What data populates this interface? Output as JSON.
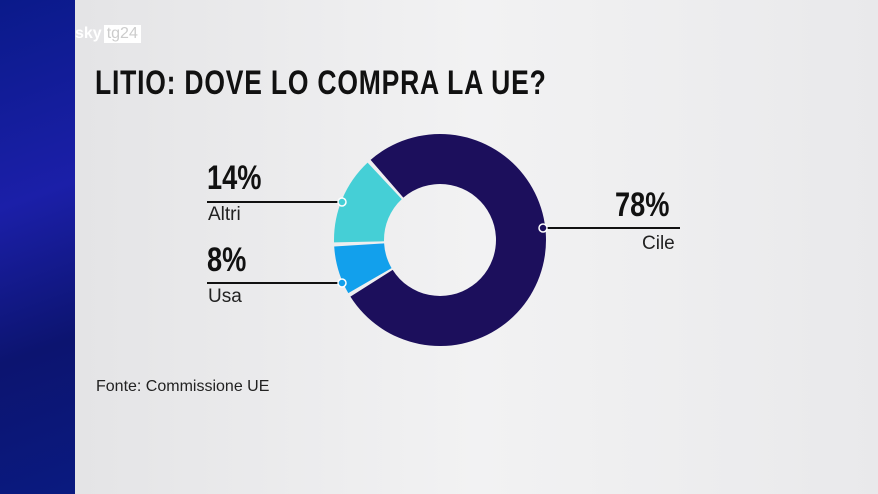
{
  "logo": {
    "brand": "sky",
    "channel": "tg24"
  },
  "source": "Fonte: Commissione UE",
  "chart_data": {
    "type": "pie",
    "title": "LITIO: DOVE LO COMPRA LA UE?",
    "slices": [
      {
        "label": "Cile",
        "value": 78,
        "value_label": "78%",
        "color": "#1c0f5c"
      },
      {
        "label": "Usa",
        "value": 8,
        "value_label": "8%",
        "color": "#12a0ec"
      },
      {
        "label": "Altri",
        "value": 14,
        "value_label": "14%",
        "color": "#45cfd6"
      }
    ],
    "donut": true
  }
}
